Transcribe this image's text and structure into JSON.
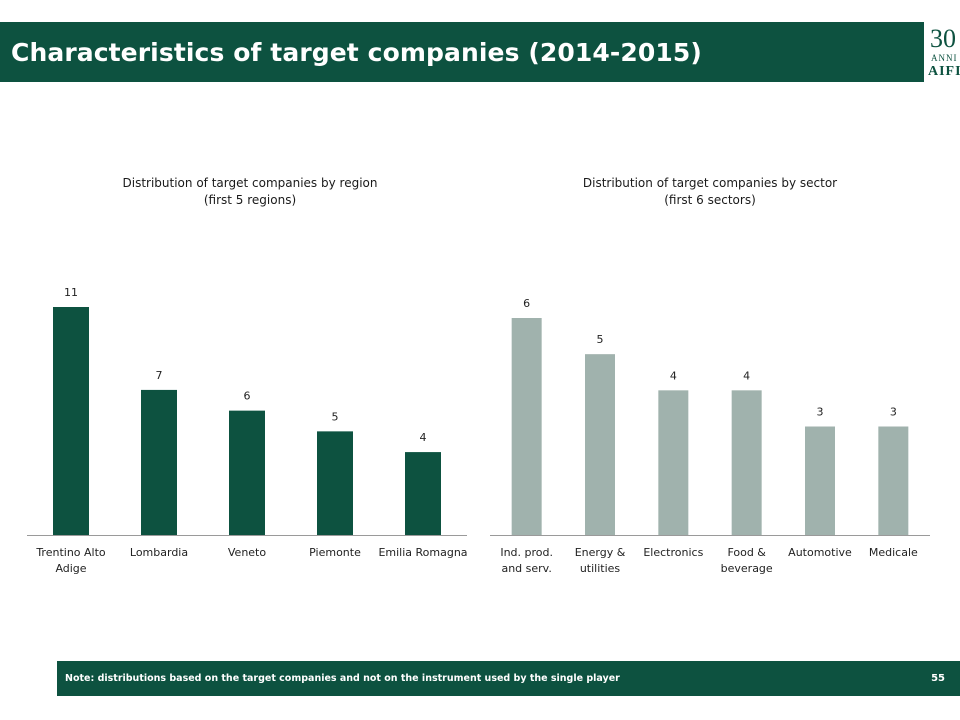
{
  "header": {
    "title": "Characteristics of target companies (2014-2015)",
    "logo_number": "30",
    "logo_subtitle": "ANNI",
    "logo_org": "AIFI"
  },
  "colors": {
    "brand_green": "#0d5240",
    "bar_region": "#0d5240",
    "bar_sector": "#a0b2ad",
    "axis": "#9a9a9a"
  },
  "footer": {
    "note": "Note: distributions based on the target companies and not on the instrument used by the single player",
    "page_number": "55"
  },
  "chart_data": [
    {
      "type": "bar",
      "title_line1": "Distribution of target companies by region",
      "title_line2": "(first 5 regions)",
      "categories": [
        [
          "Trentino Alto",
          "Adige"
        ],
        [
          "Lombardia"
        ],
        [
          "Veneto"
        ],
        [
          "Piemonte"
        ],
        [
          "Emilia Romagna"
        ]
      ],
      "values": [
        11,
        7,
        6,
        5,
        4
      ],
      "ylim": [
        0,
        11.5
      ],
      "grid": false,
      "legend": "none"
    },
    {
      "type": "bar",
      "title_line1": "Distribution of target companies by sector",
      "title_line2": "(first 6 sectors)",
      "categories": [
        [
          "Ind. prod.",
          "and serv."
        ],
        [
          "Energy &",
          "utilities"
        ],
        [
          "Electronics"
        ],
        [
          "Food &",
          "beverage"
        ],
        [
          "Automotive"
        ],
        [
          "Medicale"
        ]
      ],
      "values": [
        6,
        5,
        4,
        4,
        3,
        3
      ],
      "ylim": [
        0,
        6.5
      ],
      "grid": false,
      "legend": "none"
    }
  ]
}
